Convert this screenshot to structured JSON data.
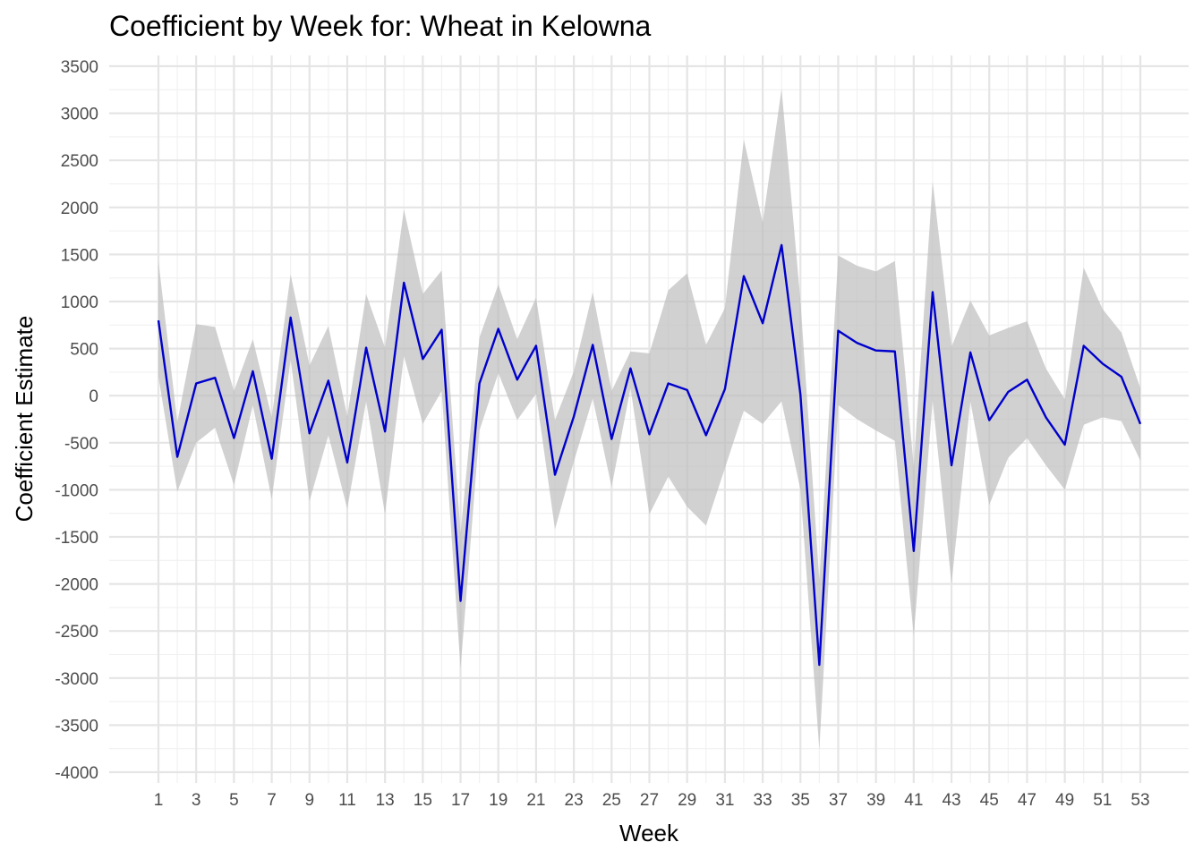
{
  "chart_data": {
    "type": "line",
    "title": "Coefficient by Week for: Wheat in Kelowna",
    "xlabel": "Week",
    "ylabel": "Coefficient Estimate",
    "xlim": [
      1,
      53
    ],
    "ylim": [
      -4000,
      3500
    ],
    "x_ticks": [
      1,
      3,
      5,
      7,
      9,
      11,
      13,
      15,
      17,
      19,
      21,
      23,
      25,
      27,
      29,
      31,
      33,
      35,
      37,
      39,
      41,
      43,
      45,
      47,
      49,
      51,
      53
    ],
    "y_ticks": [
      -4000,
      -3500,
      -3000,
      -2500,
      -2000,
      -1500,
      -1000,
      -500,
      0,
      500,
      1000,
      1500,
      2000,
      2500,
      3000,
      3500
    ],
    "grid": true,
    "line_color": "#0000cc",
    "band_color": "#bebebe",
    "series": [
      {
        "x": [
          1,
          2,
          3,
          4,
          5,
          6,
          7,
          8,
          9,
          10,
          11,
          12,
          13,
          14,
          15,
          16,
          17,
          18,
          19,
          20,
          21,
          22,
          23,
          24,
          25,
          26,
          27,
          28,
          29,
          30,
          31,
          32,
          33,
          34,
          35,
          36,
          37,
          38,
          39,
          40,
          41,
          42,
          43,
          44,
          45,
          46,
          47,
          48,
          49,
          50,
          51,
          52,
          53
        ],
        "values": [
          800,
          -650,
          130,
          190,
          -450,
          260,
          -670,
          830,
          -400,
          160,
          -710,
          510,
          -380,
          1200,
          390,
          700,
          -2180,
          130,
          710,
          170,
          530,
          -840,
          -220,
          540,
          -460,
          290,
          -410,
          130,
          60,
          -420,
          70,
          1270,
          770,
          1600,
          10,
          -2860,
          690,
          560,
          480,
          470,
          -1650,
          1100,
          -740,
          460,
          -260,
          40,
          170,
          -230,
          -520,
          530,
          340,
          200,
          -300
        ],
        "lower": [
          200,
          -1020,
          -500,
          -340,
          -950,
          -100,
          -1100,
          380,
          -1120,
          -420,
          -1200,
          -60,
          -1260,
          420,
          -300,
          50,
          -2900,
          -370,
          240,
          -260,
          20,
          -1420,
          -700,
          -30,
          -970,
          80,
          -1260,
          -860,
          -1180,
          -1380,
          -770,
          -160,
          -300,
          -60,
          -1000,
          -3760,
          -100,
          -250,
          -370,
          -480,
          -2550,
          -50,
          -2000,
          -60,
          -1160,
          -660,
          -450,
          -740,
          -1000,
          -310,
          -230,
          -270,
          -690
        ],
        "upper": [
          1430,
          -280,
          760,
          730,
          50,
          600,
          -230,
          1290,
          320,
          740,
          -220,
          1080,
          510,
          1980,
          1080,
          1330,
          -1460,
          620,
          1180,
          600,
          1040,
          -260,
          260,
          1100,
          50,
          470,
          450,
          1120,
          1300,
          540,
          930,
          2720,
          1840,
          3260,
          1010,
          -1960,
          1490,
          1380,
          1320,
          1430,
          -750,
          2280,
          520,
          1010,
          640,
          720,
          790,
          290,
          -40,
          1360,
          920,
          670,
          80
        ]
      }
    ]
  }
}
